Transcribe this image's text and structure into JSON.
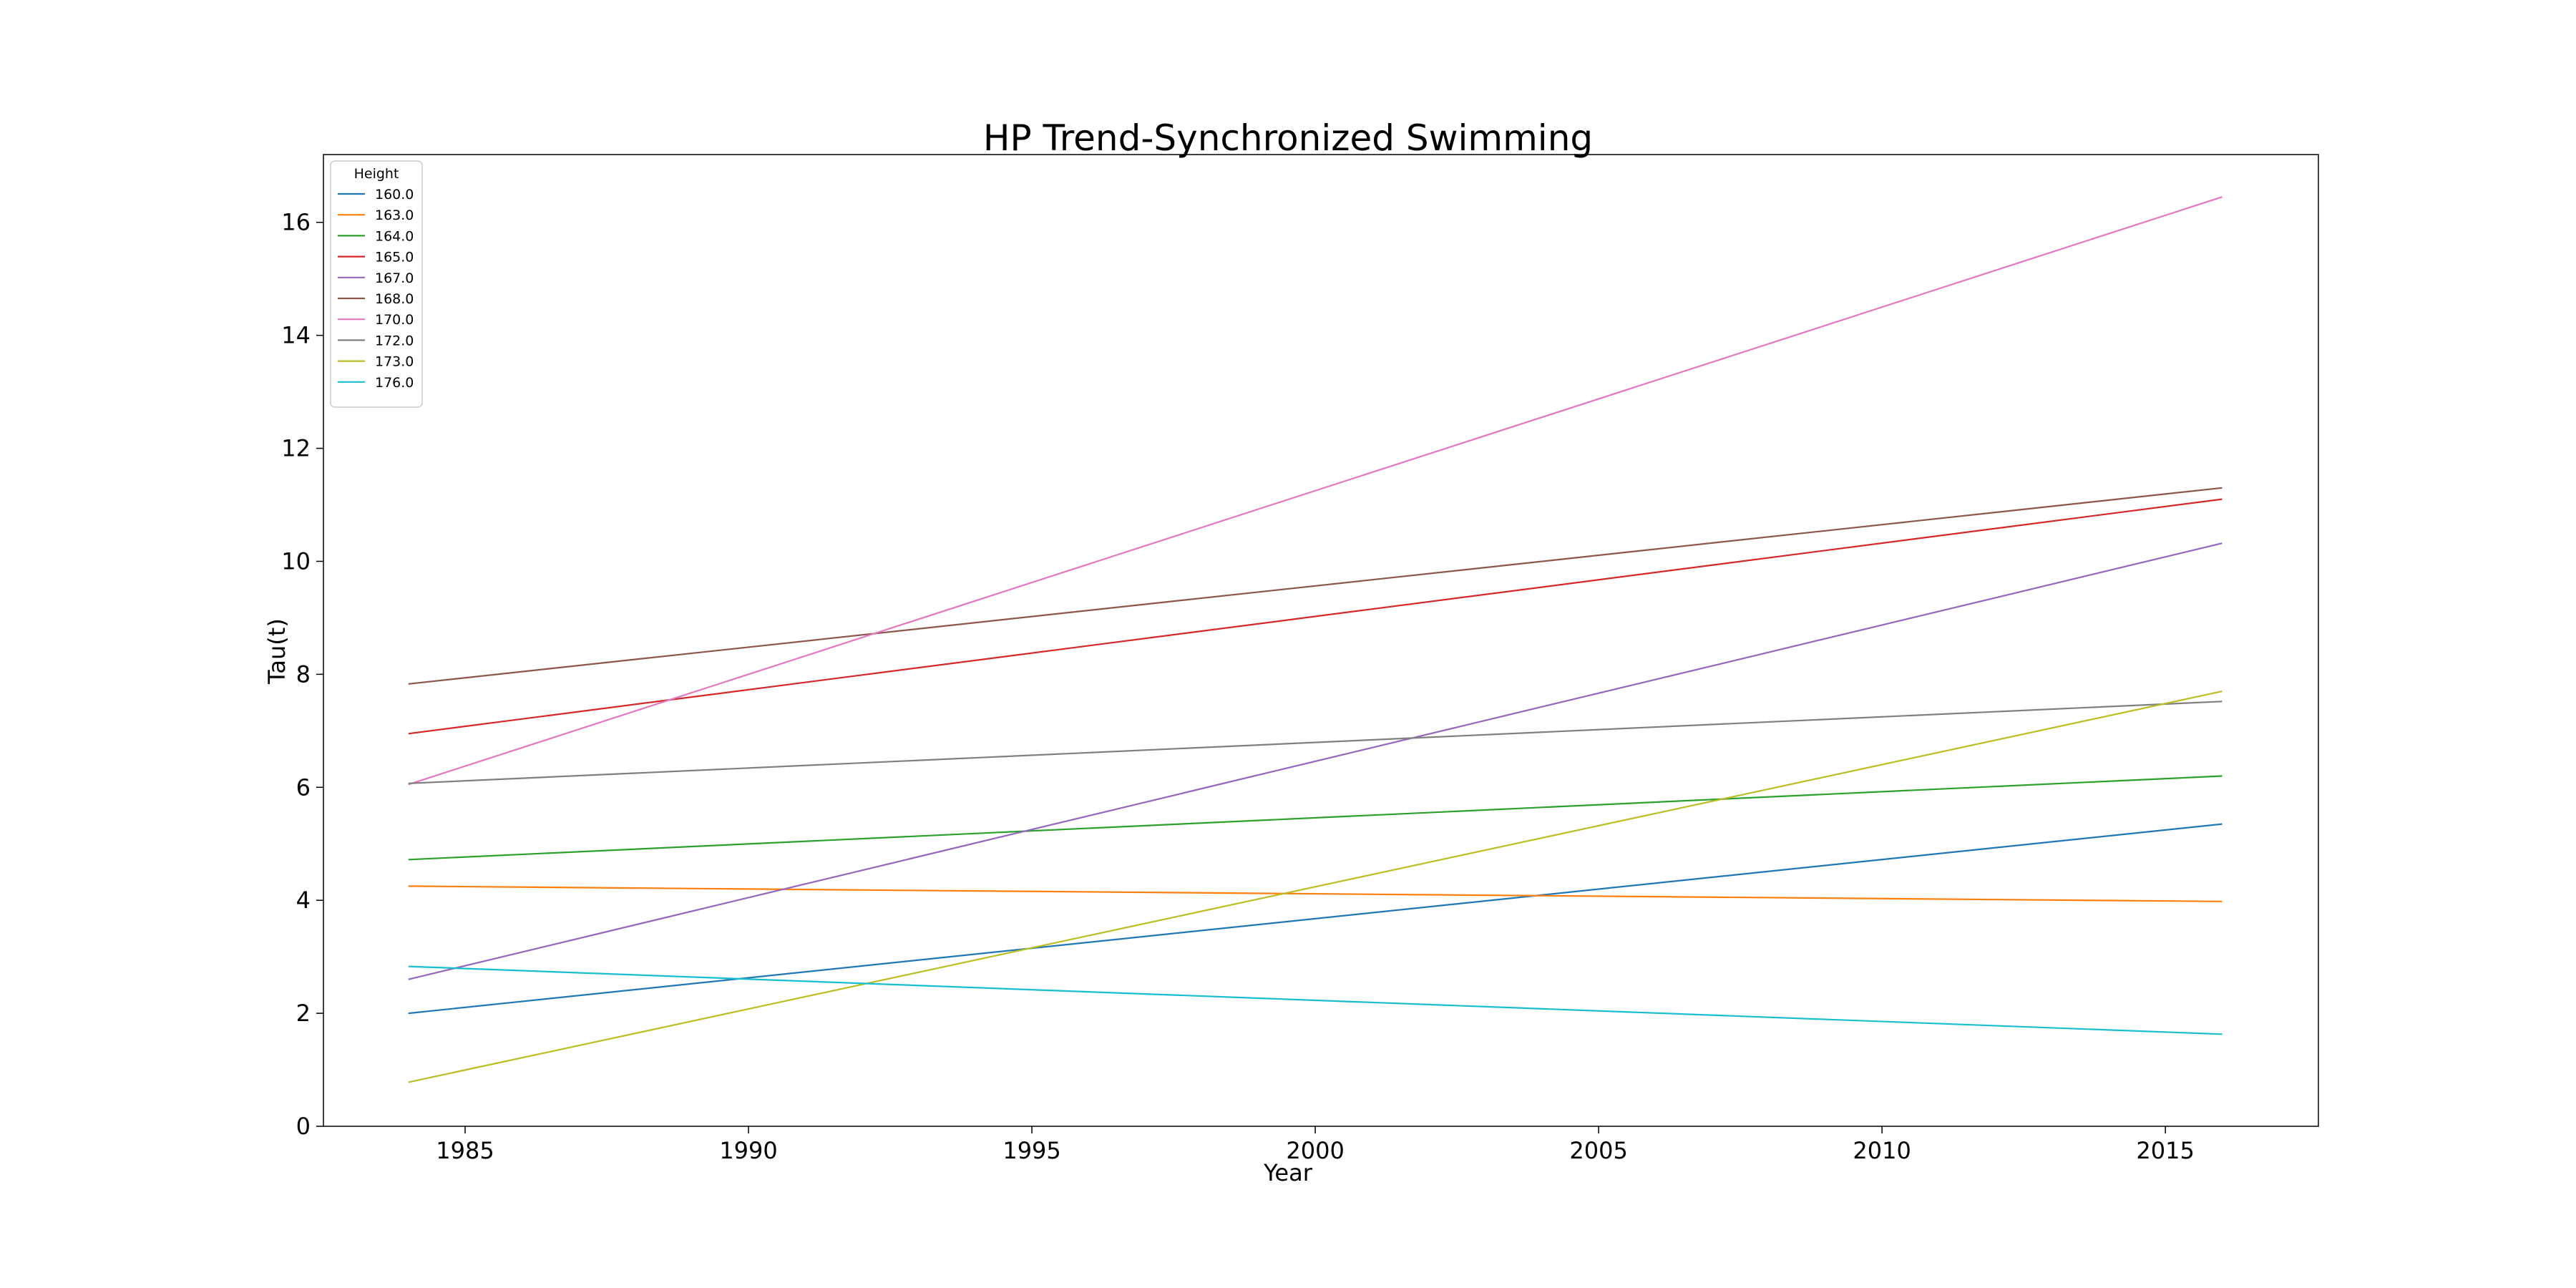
{
  "chart_data": {
    "type": "line",
    "title": "HP Trend-Synchronized Swimming",
    "xlabel": "Year",
    "ylabel": "Tau(t)",
    "xlim": [
      1982.5,
      2017.7
    ],
    "ylim": [
      0,
      17.2
    ],
    "xticks": [
      1985,
      1990,
      1995,
      2000,
      2005,
      2010,
      2015
    ],
    "yticks": [
      0,
      2,
      4,
      6,
      8,
      10,
      12,
      14,
      16
    ],
    "grid": false,
    "legend": {
      "title": "Height",
      "placement": "top-left"
    },
    "x": [
      1984,
      2016
    ],
    "series": [
      {
        "name": "160.0",
        "color": "#1f77b4",
        "values": [
          2.0,
          5.35
        ]
      },
      {
        "name": "163.0",
        "color": "#ff7f0e",
        "values": [
          4.25,
          3.98
        ]
      },
      {
        "name": "164.0",
        "color": "#2ca02c",
        "values": [
          4.72,
          6.2
        ]
      },
      {
        "name": "165.0",
        "color": "#d62728",
        "values": [
          6.95,
          11.1
        ]
      },
      {
        "name": "167.0",
        "color": "#9467bd",
        "values": [
          2.6,
          10.32
        ]
      },
      {
        "name": "168.0",
        "color": "#8c564b",
        "values": [
          7.83,
          11.3
        ]
      },
      {
        "name": "170.0",
        "color": "#e377c2",
        "values": [
          6.05,
          16.45
        ]
      },
      {
        "name": "172.0",
        "color": "#7f7f7f",
        "values": [
          6.07,
          7.52
        ]
      },
      {
        "name": "173.0",
        "color": "#bcbd22",
        "values": [
          0.78,
          7.7
        ]
      },
      {
        "name": "176.0",
        "color": "#17becf",
        "values": [
          2.83,
          1.63
        ]
      }
    ]
  }
}
